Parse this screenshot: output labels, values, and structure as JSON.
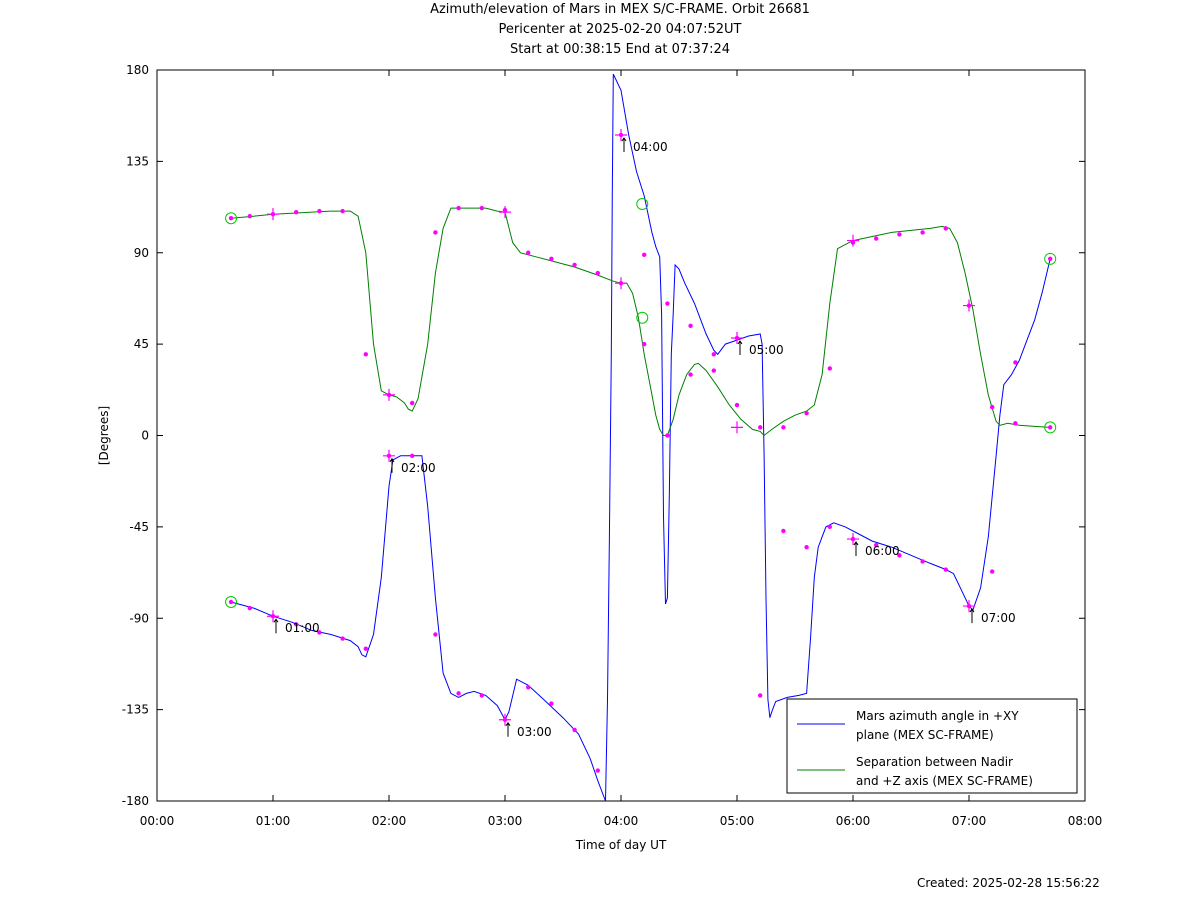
{
  "title_lines": [
    "Azimuth/elevation of Mars in MEX S/C-FRAME.  Orbit 26681",
    "Pericenter at 2025-02-20 04:07:52UT",
    "Start at 00:38:15 End at 07:37:24"
  ],
  "footer": {
    "created": "Created: 2025-02-28 15:56:22"
  },
  "chart_data": {
    "type": "line",
    "title": "Azimuth/elevation of Mars in MEX S/C-FRAME.  Orbit 26681",
    "xlabel": "Time of day UT",
    "ylabel": "[Degrees]",
    "xlim": [
      0,
      480
    ],
    "ylim": [
      -180,
      180
    ],
    "x_ticks": [
      {
        "v": 0,
        "label": "00:00"
      },
      {
        "v": 60,
        "label": "01:00"
      },
      {
        "v": 120,
        "label": "02:00"
      },
      {
        "v": 180,
        "label": "03:00"
      },
      {
        "v": 240,
        "label": "04:00"
      },
      {
        "v": 300,
        "label": "05:00"
      },
      {
        "v": 360,
        "label": "06:00"
      },
      {
        "v": 420,
        "label": "07:00"
      },
      {
        "v": 480,
        "label": "08:00"
      }
    ],
    "y_ticks": [
      {
        "v": -180,
        "label": "-180"
      },
      {
        "v": -135,
        "label": "-135"
      },
      {
        "v": -90,
        "label": "-90"
      },
      {
        "v": -45,
        "label": "-45"
      },
      {
        "v": 0,
        "label": "0"
      },
      {
        "v": 45,
        "label": "45"
      },
      {
        "v": 90,
        "label": "90"
      },
      {
        "v": 135,
        "label": "135"
      },
      {
        "v": 180,
        "label": "180"
      }
    ],
    "legend_position": "bottom-right",
    "series": [
      {
        "name": "Mars azimuth angle in +XY plane (MEX SC-FRAME)",
        "legend_lines": [
          "Mars azimuth angle in +XY",
          "plane (MEX SC-FRAME)"
        ],
        "color": "#0000ff",
        "points": [
          [
            38.3,
            -82
          ],
          [
            50,
            -85
          ],
          [
            60,
            -89
          ],
          [
            70,
            -92
          ],
          [
            80,
            -96
          ],
          [
            90,
            -98
          ],
          [
            100,
            -101
          ],
          [
            104,
            -104
          ],
          [
            106,
            -108
          ],
          [
            108,
            -109
          ],
          [
            112,
            -98
          ],
          [
            116,
            -70
          ],
          [
            120,
            -25
          ],
          [
            122,
            -12
          ],
          [
            126,
            -10
          ],
          [
            132,
            -10
          ],
          [
            137,
            -10
          ],
          [
            140,
            -35
          ],
          [
            144,
            -80
          ],
          [
            148,
            -117
          ],
          [
            152,
            -127
          ],
          [
            156,
            -129
          ],
          [
            160,
            -127
          ],
          [
            164,
            -126
          ],
          [
            170,
            -128
          ],
          [
            176,
            -133
          ],
          [
            180,
            -140
          ],
          [
            182,
            -136
          ],
          [
            186,
            -120
          ],
          [
            192,
            -123
          ],
          [
            200,
            -130
          ],
          [
            210,
            -139
          ],
          [
            218,
            -147
          ],
          [
            224,
            -159
          ],
          [
            228,
            -170
          ],
          [
            232,
            -180
          ],
          [
            233,
            -130
          ],
          [
            234,
            -50
          ],
          [
            235,
            40
          ],
          [
            235.5,
            120
          ],
          [
            236,
            178
          ],
          [
            240,
            170
          ],
          [
            244,
            148
          ],
          [
            248,
            130
          ],
          [
            252,
            118
          ],
          [
            256,
            100
          ],
          [
            258,
            93
          ],
          [
            260,
            88
          ],
          [
            261,
            60
          ],
          [
            262,
            -40
          ],
          [
            263,
            -83
          ],
          [
            264,
            -80
          ],
          [
            265,
            -30
          ],
          [
            266,
            40
          ],
          [
            267,
            60
          ],
          [
            268,
            84
          ],
          [
            270,
            82
          ],
          [
            273,
            75
          ],
          [
            278,
            65
          ],
          [
            284,
            50
          ],
          [
            288,
            42
          ],
          [
            290,
            40
          ],
          [
            294,
            45
          ],
          [
            300,
            47
          ],
          [
            306,
            49
          ],
          [
            312,
            50
          ],
          [
            313,
            45
          ],
          [
            314,
            -10
          ],
          [
            315,
            -80
          ],
          [
            316,
            -130
          ],
          [
            317,
            -139
          ],
          [
            318,
            -136
          ],
          [
            320,
            -131
          ],
          [
            326,
            -129
          ],
          [
            332,
            -128
          ],
          [
            336,
            -127
          ],
          [
            338,
            -100
          ],
          [
            340,
            -70
          ],
          [
            342,
            -55
          ],
          [
            346,
            -45
          ],
          [
            350,
            -43
          ],
          [
            356,
            -45
          ],
          [
            362,
            -48
          ],
          [
            370,
            -52
          ],
          [
            380,
            -55
          ],
          [
            390,
            -59
          ],
          [
            400,
            -63
          ],
          [
            408,
            -66
          ],
          [
            412,
            -68
          ],
          [
            416,
            -76
          ],
          [
            420,
            -84
          ],
          [
            422,
            -86
          ],
          [
            426,
            -75
          ],
          [
            430,
            -50
          ],
          [
            434,
            -10
          ],
          [
            436,
            10
          ],
          [
            438,
            25
          ],
          [
            442,
            30
          ],
          [
            446,
            37
          ],
          [
            450,
            47
          ],
          [
            454,
            57
          ],
          [
            458,
            71
          ],
          [
            462,
            87
          ]
        ],
        "markers": [
          [
            38.3,
            -82
          ],
          [
            48,
            -85
          ],
          [
            60,
            -89
          ],
          [
            72,
            -93
          ],
          [
            84,
            -97
          ],
          [
            96,
            -100
          ],
          [
            108,
            -105
          ],
          [
            120,
            -10
          ],
          [
            132,
            -10
          ],
          [
            144,
            -98
          ],
          [
            156,
            -127
          ],
          [
            168,
            -128
          ],
          [
            180,
            -140
          ],
          [
            192,
            -124
          ],
          [
            204,
            -132
          ],
          [
            216,
            -145
          ],
          [
            228,
            -165
          ],
          [
            240,
            148
          ],
          [
            252,
            89
          ],
          [
            264,
            65
          ],
          [
            276,
            54
          ],
          [
            288,
            40
          ],
          [
            300,
            48
          ],
          [
            312,
            -128
          ],
          [
            324,
            -47
          ],
          [
            336,
            -55
          ],
          [
            348,
            -45
          ],
          [
            360,
            -51
          ],
          [
            372,
            -54
          ],
          [
            384,
            -59
          ],
          [
            396,
            -62
          ],
          [
            408,
            -66
          ],
          [
            420,
            -84
          ],
          [
            432,
            -67
          ],
          [
            444,
            36
          ],
          [
            462,
            87
          ]
        ]
      },
      {
        "name": "Separation between Nadir and +Z axis (MEX SC-FRAME)",
        "legend_lines": [
          "Separation between Nadir",
          "and +Z axis (MEX SC-FRAME)"
        ],
        "color": "#007f00",
        "points": [
          [
            38.3,
            107
          ],
          [
            50,
            108
          ],
          [
            60,
            109
          ],
          [
            70,
            109.5
          ],
          [
            80,
            110
          ],
          [
            90,
            110.5
          ],
          [
            100,
            110.5
          ],
          [
            104,
            108
          ],
          [
            108,
            90
          ],
          [
            112,
            45
          ],
          [
            116,
            22
          ],
          [
            120,
            20
          ],
          [
            124,
            19
          ],
          [
            128,
            16
          ],
          [
            130,
            13
          ],
          [
            132,
            12
          ],
          [
            135,
            18
          ],
          [
            140,
            45
          ],
          [
            144,
            80
          ],
          [
            148,
            102
          ],
          [
            152,
            112
          ],
          [
            160,
            112
          ],
          [
            170,
            112
          ],
          [
            176,
            110.5
          ],
          [
            180,
            110
          ],
          [
            184,
            95
          ],
          [
            188,
            90
          ],
          [
            196,
            88
          ],
          [
            204,
            86
          ],
          [
            216,
            83
          ],
          [
            228,
            79
          ],
          [
            236,
            76
          ],
          [
            240,
            75
          ],
          [
            243,
            75
          ],
          [
            246,
            70
          ],
          [
            249,
            58
          ],
          [
            252,
            40
          ],
          [
            255,
            25
          ],
          [
            258,
            10
          ],
          [
            260,
            3
          ],
          [
            262,
            0
          ],
          [
            264,
            0
          ],
          [
            267,
            8
          ],
          [
            270,
            20
          ],
          [
            274,
            30
          ],
          [
            278,
            35
          ],
          [
            280,
            35.5
          ],
          [
            284,
            32
          ],
          [
            290,
            24
          ],
          [
            296,
            15
          ],
          [
            302,
            8
          ],
          [
            308,
            3
          ],
          [
            312,
            2
          ],
          [
            314,
            0
          ],
          [
            318,
            3
          ],
          [
            324,
            7
          ],
          [
            330,
            10
          ],
          [
            336,
            12
          ],
          [
            340,
            15
          ],
          [
            344,
            30
          ],
          [
            348,
            65
          ],
          [
            352,
            92
          ],
          [
            356,
            94
          ],
          [
            360,
            96
          ],
          [
            370,
            98
          ],
          [
            380,
            100
          ],
          [
            390,
            101
          ],
          [
            400,
            102
          ],
          [
            406,
            103
          ],
          [
            410,
            102
          ],
          [
            414,
            95
          ],
          [
            418,
            80
          ],
          [
            422,
            62
          ],
          [
            426,
            40
          ],
          [
            430,
            20
          ],
          [
            434,
            7
          ],
          [
            436,
            5
          ],
          [
            440,
            6
          ],
          [
            446,
            5
          ],
          [
            454,
            4.5
          ],
          [
            462,
            4
          ]
        ],
        "markers": [
          [
            38.3,
            107
          ],
          [
            48,
            108
          ],
          [
            60,
            109
          ],
          [
            72,
            110
          ],
          [
            84,
            110.5
          ],
          [
            96,
            110.5
          ],
          [
            108,
            40
          ],
          [
            120,
            20
          ],
          [
            132,
            16
          ],
          [
            144,
            100
          ],
          [
            156,
            112
          ],
          [
            168,
            112
          ],
          [
            180,
            111
          ],
          [
            192,
            90
          ],
          [
            204,
            87
          ],
          [
            216,
            84
          ],
          [
            228,
            80
          ],
          [
            240,
            75
          ],
          [
            252,
            45
          ],
          [
            264,
            0
          ],
          [
            276,
            30
          ],
          [
            288,
            32
          ],
          [
            300,
            15
          ],
          [
            312,
            4
          ],
          [
            324,
            4
          ],
          [
            336,
            11
          ],
          [
            348,
            33
          ],
          [
            360,
            95
          ],
          [
            372,
            97
          ],
          [
            384,
            99
          ],
          [
            396,
            100
          ],
          [
            408,
            102
          ],
          [
            420,
            64
          ],
          [
            432,
            14
          ],
          [
            444,
            6
          ],
          [
            462,
            4
          ]
        ]
      }
    ],
    "hour_markers": [
      {
        "x": 60,
        "y": -89,
        "label": "01:00"
      },
      {
        "x": 120,
        "y": -10,
        "label": "02:00"
      },
      {
        "x": 180,
        "y": -140,
        "label": "03:00"
      },
      {
        "x": 240,
        "y": 148,
        "label": "04:00"
      },
      {
        "x": 300,
        "y": 48,
        "label": "05:00"
      },
      {
        "x": 360,
        "y": -51,
        "label": "06:00"
      },
      {
        "x": 420,
        "y": -84,
        "label": "07:00"
      }
    ],
    "plus_markers": [
      [
        60,
        109
      ],
      [
        120,
        20
      ],
      [
        180,
        110
      ],
      [
        240,
        75
      ],
      [
        300,
        4
      ],
      [
        360,
        96
      ],
      [
        420,
        64
      ]
    ],
    "circle_markers": [
      [
        38.3,
        -82
      ],
      [
        38.3,
        107
      ],
      [
        251,
        114
      ],
      [
        251,
        58
      ],
      [
        462,
        87
      ],
      [
        462,
        4
      ]
    ]
  }
}
